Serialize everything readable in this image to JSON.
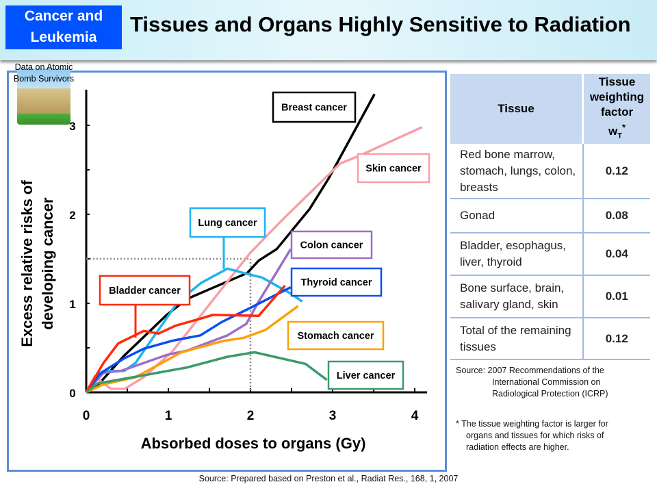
{
  "header": {
    "badge_line1": "Cancer and",
    "badge_line2": "Leukemia",
    "title": "Tissues and Organs Highly Sensitive to Radiation"
  },
  "photo_caption": {
    "line1": "Data on Atomic",
    "line2": "Bomb Survivors"
  },
  "chart_data": {
    "type": "line",
    "xlabel": "Absorbed doses to organs (Gy)",
    "ylabel_line1": "Excess relative risks of",
    "ylabel_line2": "developing cancer",
    "xlim": [
      0,
      4.1
    ],
    "ylim": [
      0,
      3.4
    ],
    "xticks": [
      "0",
      "1",
      "2",
      "3",
      "4"
    ],
    "yticks": [
      "0",
      "1",
      "2",
      "3"
    ],
    "grid": false,
    "reference_lines": {
      "y": 1.5,
      "x": 2
    },
    "series": [
      {
        "name": "Breast cancer",
        "color": "#000000",
        "points": [
          [
            0,
            0
          ],
          [
            0.14,
            0.08
          ],
          [
            0.46,
            0.41
          ],
          [
            0.98,
            0.87
          ],
          [
            1.23,
            1.05
          ],
          [
            1.58,
            1.19
          ],
          [
            1.96,
            1.34
          ],
          [
            2.1,
            1.48
          ],
          [
            2.32,
            1.61
          ],
          [
            2.72,
            2.06
          ],
          [
            2.95,
            2.4
          ],
          [
            3.51,
            3.35
          ]
        ]
      },
      {
        "name": "Skin cancer",
        "color": "#f7a0a8",
        "points": [
          [
            0,
            0
          ],
          [
            0.1,
            0.18
          ],
          [
            0.3,
            0.04
          ],
          [
            0.47,
            0.04
          ],
          [
            0.7,
            0.17
          ],
          [
            1.05,
            0.46
          ],
          [
            1.4,
            0.87
          ],
          [
            1.75,
            1.28
          ],
          [
            2.0,
            1.57
          ],
          [
            2.39,
            1.94
          ],
          [
            3.09,
            2.57
          ],
          [
            3.33,
            2.66
          ],
          [
            4.09,
            2.98
          ]
        ]
      },
      {
        "name": "Lung cancer",
        "color": "#1eb4f0",
        "points": [
          [
            0,
            0
          ],
          [
            0.14,
            0.2
          ],
          [
            0.21,
            0.24
          ],
          [
            0.46,
            0.24
          ],
          [
            0.6,
            0.33
          ],
          [
            0.81,
            0.61
          ],
          [
            1.12,
            1.02
          ],
          [
            1.4,
            1.23
          ],
          [
            1.72,
            1.39
          ],
          [
            1.96,
            1.33
          ],
          [
            2.14,
            1.29
          ],
          [
            2.49,
            1.11
          ],
          [
            2.63,
            1.02
          ]
        ]
      },
      {
        "name": "Colon cancer",
        "color": "#9a6fca",
        "points": [
          [
            0,
            0
          ],
          [
            0.21,
            0.22
          ],
          [
            0.42,
            0.24
          ],
          [
            0.7,
            0.33
          ],
          [
            0.98,
            0.42
          ],
          [
            1.23,
            0.47
          ],
          [
            1.72,
            0.64
          ],
          [
            1.95,
            0.77
          ],
          [
            2.1,
            1.02
          ],
          [
            2.49,
            1.61
          ]
        ]
      },
      {
        "name": "Thyroid cancer",
        "color": "#0a4ff0",
        "points": [
          [
            0,
            0
          ],
          [
            0.16,
            0.2
          ],
          [
            0.25,
            0.26
          ],
          [
            0.46,
            0.38
          ],
          [
            0.7,
            0.49
          ],
          [
            1.05,
            0.58
          ],
          [
            1.39,
            0.64
          ],
          [
            1.65,
            0.79
          ],
          [
            2.0,
            0.95
          ],
          [
            2.49,
            1.18
          ]
        ]
      },
      {
        "name": "Bladder cancer",
        "color": "#ff2a0a",
        "points": [
          [
            0,
            0
          ],
          [
            0.21,
            0.33
          ],
          [
            0.39,
            0.55
          ],
          [
            0.7,
            0.69
          ],
          [
            0.88,
            0.66
          ],
          [
            1.09,
            0.75
          ],
          [
            1.4,
            0.83
          ],
          [
            1.54,
            0.87
          ],
          [
            2.1,
            0.86
          ],
          [
            2.42,
            1.2
          ]
        ]
      },
      {
        "name": "Stomach cancer",
        "color": "#ff9f0a",
        "points": [
          [
            0,
            0
          ],
          [
            0.21,
            0.09
          ],
          [
            0.6,
            0.17
          ],
          [
            0.88,
            0.31
          ],
          [
            1.16,
            0.45
          ],
          [
            1.68,
            0.58
          ],
          [
            1.91,
            0.61
          ],
          [
            2.18,
            0.7
          ],
          [
            2.58,
            0.97
          ]
        ]
      },
      {
        "name": "Liver cancer",
        "color": "#3a9a6a",
        "points": [
          [
            0,
            0
          ],
          [
            0.14,
            0.1
          ],
          [
            0.63,
            0.18
          ],
          [
            1.23,
            0.28
          ],
          [
            1.72,
            0.4
          ],
          [
            2.05,
            0.45
          ],
          [
            2.67,
            0.32
          ],
          [
            2.93,
            0.14
          ]
        ]
      }
    ]
  },
  "table": {
    "headers": [
      "Tissue",
      "Tissue weighting factor",
      "wT*"
    ],
    "rows": [
      {
        "tissue": "Red bone marrow, stomach, lungs, colon, breasts",
        "factor": "0.12"
      },
      {
        "tissue": "Gonad",
        "factor": "0.08"
      },
      {
        "tissue": "Bladder, esophagus, liver, thyroid",
        "factor": "0.04"
      },
      {
        "tissue": "Bone surface, brain, salivary gland, skin",
        "factor": "0.01"
      },
      {
        "tissue": "Total of the remaining tissues",
        "factor": "0.12"
      }
    ]
  },
  "table_source": {
    "line1": "Source: 2007 Recommendations of the",
    "line2": "International Commission on",
    "line3": "Radiological Protection (ICRP)"
  },
  "note": {
    "line1": "* The tissue weighting factor is larger for",
    "line2": "organs and tissues for which risks of",
    "line3": "radiation effects are higher."
  },
  "footer_source": "Source: Prepared based on Preston et al., Radiat Res., 168, 1, 2007"
}
